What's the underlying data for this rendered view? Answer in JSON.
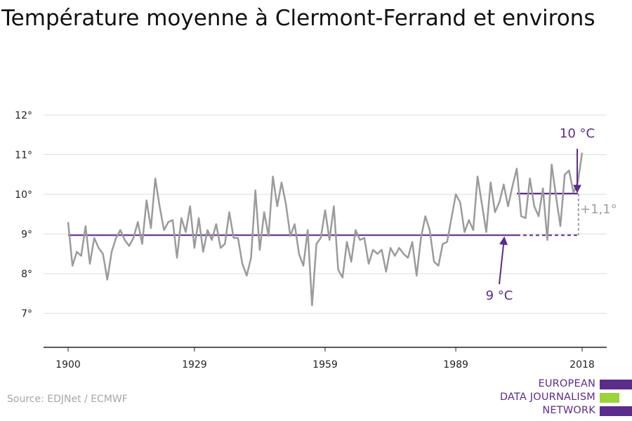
{
  "title": "Température moyenne à Clermont-Ferrand et environs",
  "source": "Source: EDJNet / ECMWF",
  "logo": {
    "lines": [
      "EUROPEAN",
      "DATA JOURNALISM",
      "NETWORK"
    ],
    "bar_colors": [
      "#5b2c8a",
      "#9bd33a",
      "#5b2c8a"
    ]
  },
  "colors": {
    "series": "#9b9b9b",
    "accent": "#5b2c8a",
    "delta": "#a0a0a0",
    "grid": "#dddddd",
    "axis": "#222222"
  },
  "chart_data": {
    "type": "line",
    "title": "Température moyenne à Clermont-Ferrand et environs",
    "xlabel": "",
    "ylabel": "",
    "xlim": [
      1900,
      2018
    ],
    "ylim": [
      6,
      12
    ],
    "x_ticks": [
      1900,
      1929,
      1959,
      1989,
      2018
    ],
    "y_ticks": [
      7,
      8,
      9,
      10,
      11,
      12
    ],
    "y_tick_suffix": "°",
    "grid": true,
    "series": [
      {
        "x": [
          1900,
          1901,
          1902,
          1903,
          1904,
          1905,
          1906,
          1907,
          1908,
          1909,
          1910,
          1911,
          1912,
          1913,
          1914,
          1915,
          1916,
          1917,
          1918,
          1919,
          1920,
          1921,
          1922,
          1923,
          1924,
          1925,
          1926,
          1927,
          1928,
          1929,
          1930,
          1931,
          1932,
          1933,
          1934,
          1935,
          1936,
          1937,
          1938,
          1939,
          1940,
          1941,
          1942,
          1943,
          1944,
          1945,
          1946,
          1947,
          1948,
          1949,
          1950,
          1951,
          1952,
          1953,
          1954,
          1955,
          1956,
          1957,
          1958,
          1959,
          1960,
          1961,
          1962,
          1963,
          1964,
          1965,
          1966,
          1967,
          1968,
          1969,
          1970,
          1971,
          1972,
          1973,
          1974,
          1975,
          1976,
          1977,
          1978,
          1979,
          1980,
          1981,
          1982,
          1983,
          1984,
          1985,
          1986,
          1987,
          1988,
          1989,
          1990,
          1991,
          1992,
          1993,
          1994,
          1995,
          1996,
          1997,
          1998,
          1999,
          2000,
          2001,
          2002,
          2003,
          2004,
          2005,
          2006,
          2007,
          2008,
          2009,
          2010,
          2011,
          2012,
          2013,
          2014,
          2015,
          2016,
          2017,
          2018
        ],
        "values": [
          9.3,
          8.2,
          8.55,
          8.45,
          9.2,
          8.25,
          8.9,
          8.65,
          8.5,
          7.85,
          8.55,
          8.9,
          9.1,
          8.85,
          8.7,
          8.9,
          9.3,
          8.75,
          9.85,
          9.15,
          10.4,
          9.7,
          9.1,
          9.3,
          9.35,
          8.4,
          9.4,
          9.05,
          9.7,
          8.65,
          9.4,
          8.55,
          9.1,
          8.85,
          9.25,
          8.65,
          8.75,
          9.55,
          8.9,
          8.9,
          8.25,
          7.95,
          8.4,
          10.1,
          8.6,
          9.55,
          8.95,
          10.45,
          9.7,
          10.3,
          9.75,
          8.95,
          9.25,
          8.5,
          8.2,
          9.1,
          7.2,
          8.75,
          8.9,
          9.6,
          8.85,
          9.7,
          8.1,
          7.9,
          8.8,
          8.3,
          9.1,
          8.85,
          8.9,
          8.25,
          8.6,
          8.5,
          8.6,
          8.05,
          8.65,
          8.45,
          8.65,
          8.5,
          8.4,
          8.8,
          7.95,
          8.9,
          9.45,
          9.1,
          8.3,
          8.2,
          8.75,
          8.8,
          9.4,
          10.0,
          9.8,
          9.05,
          9.35,
          9.1,
          10.45,
          9.75,
          9.05,
          10.3,
          9.55,
          9.8,
          10.25,
          9.7,
          10.2,
          10.65,
          9.45,
          9.4,
          10.4,
          9.7,
          9.45,
          10.15,
          8.85,
          10.75,
          9.95,
          9.2,
          10.5,
          10.6,
          10.05,
          10.3,
          11.05
        ]
      }
    ],
    "baseline": {
      "label": "9 °C",
      "value": 8.97,
      "solid_to": 2003,
      "dashed_to": 2017
    },
    "recent": {
      "label": "10 °C",
      "value": 10.02,
      "from": 2003,
      "to": 2017
    },
    "delta": {
      "label": "+1,1°"
    }
  }
}
